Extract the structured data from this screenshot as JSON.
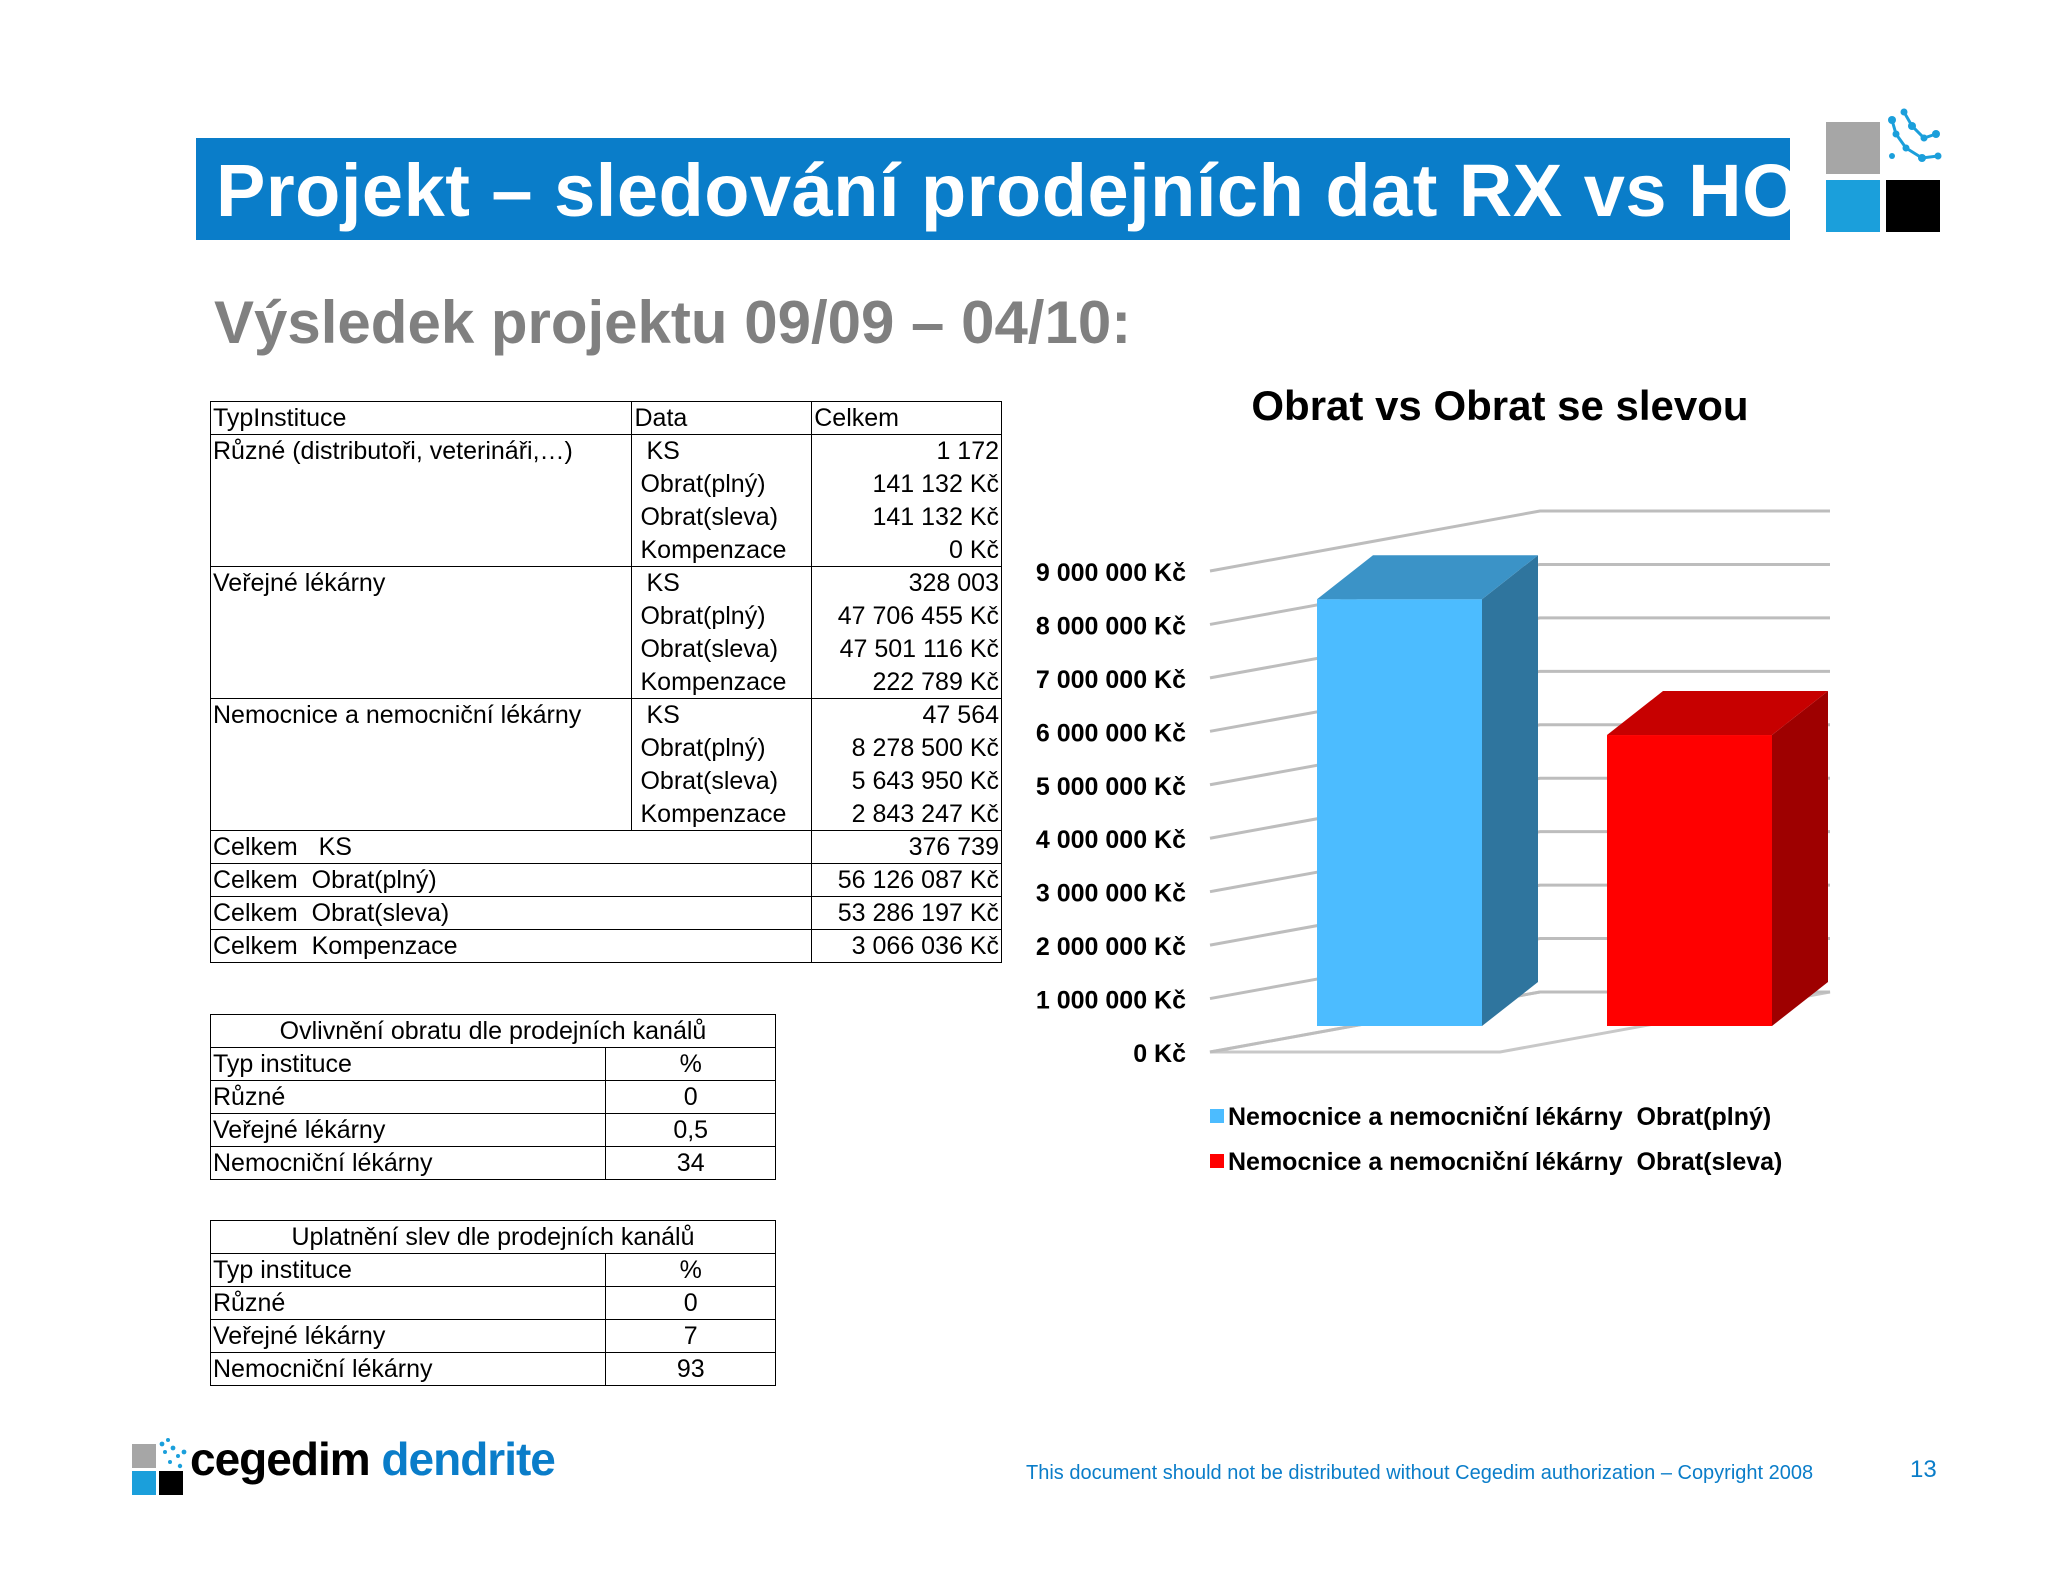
{
  "title": "Projekt – sledování prodejních dat RX vs HO",
  "subtitle": "Výsledek projektu 09/09 – 04/10:",
  "main_table": {
    "headers": [
      "TypInstituce",
      "Data",
      "Celkem"
    ],
    "groups": [
      {
        "name": "Různé (distributoři, veterináři,…)",
        "rows": [
          [
            "KS",
            "1 172"
          ],
          [
            "Obrat(plný)",
            "141 132 Kč"
          ],
          [
            "Obrat(sleva)",
            "141 132 Kč"
          ],
          [
            "Kompenzace",
            "0 Kč"
          ]
        ]
      },
      {
        "name": "Veřejné lékárny",
        "rows": [
          [
            "KS",
            "328 003"
          ],
          [
            "Obrat(plný)",
            "47 706 455 Kč"
          ],
          [
            "Obrat(sleva)",
            "47 501 116 Kč"
          ],
          [
            "Kompenzace",
            "222 789 Kč"
          ]
        ]
      },
      {
        "name": "Nemocnice a nemocniční lékárny",
        "rows": [
          [
            "KS",
            "47 564"
          ],
          [
            "Obrat(plný)",
            "8 278 500 Kč"
          ],
          [
            "Obrat(sleva)",
            "5 643 950 Kč"
          ],
          [
            "Kompenzace",
            "2 843 247 Kč"
          ]
        ]
      }
    ],
    "totals": [
      {
        "label": "Celkem   KS",
        "value": "376 739"
      },
      {
        "label": "Celkem  Obrat(plný)",
        "value": "56 126 087 Kč"
      },
      {
        "label": "Celkem  Obrat(sleva)",
        "value": "53 286 197 Kč"
      },
      {
        "label": "Celkem  Kompenzace",
        "value": "3 066 036 Kč"
      }
    ]
  },
  "table2": {
    "title": "Ovlivnění obratu dle prodejních kanálů",
    "col_a": "Typ instituce",
    "col_b": "%",
    "rows": [
      [
        "Různé",
        "0"
      ],
      [
        "Veřejné lékárny",
        "0,5"
      ],
      [
        "Nemocniční lékárny",
        "34"
      ]
    ]
  },
  "table3": {
    "title": "Uplatnění slev dle prodejních kanálů",
    "col_a": "Typ instituce",
    "col_b": "%",
    "rows": [
      [
        "Různé",
        "0"
      ],
      [
        "Veřejné lékárny",
        "7"
      ],
      [
        "Nemocniční lékárny",
        "93"
      ]
    ]
  },
  "chart_data": {
    "type": "bar",
    "title": "Obrat vs Obrat se slevou",
    "categories": [
      ""
    ],
    "series": [
      {
        "name": "Nemocnice a nemocniční lékárny  Obrat(plný)",
        "values": [
          8278500
        ],
        "color": "#4cbcff"
      },
      {
        "name": "Nemocnice a nemocniční lékárny  Obrat(sleva)",
        "values": [
          5643950
        ],
        "color": "#ff0000"
      }
    ],
    "yticks": [
      "0 Kč",
      "1 000 000 Kč",
      "2 000 000 Kč",
      "3 000 000 Kč",
      "4 000 000 Kč",
      "5 000 000 Kč",
      "6 000 000 Kč",
      "7 000 000 Kč",
      "8 000 000 Kč",
      "9 000 000 Kč"
    ],
    "ylim": [
      0,
      9000000
    ],
    "legend_position": "bottom",
    "grid": true,
    "style": "3d"
  },
  "logo": {
    "word1": "cegedim",
    "word2": "dendrite"
  },
  "footer": "This document should not be distributed without Cegedim authorization – Copyright 2008",
  "page_number": "13"
}
